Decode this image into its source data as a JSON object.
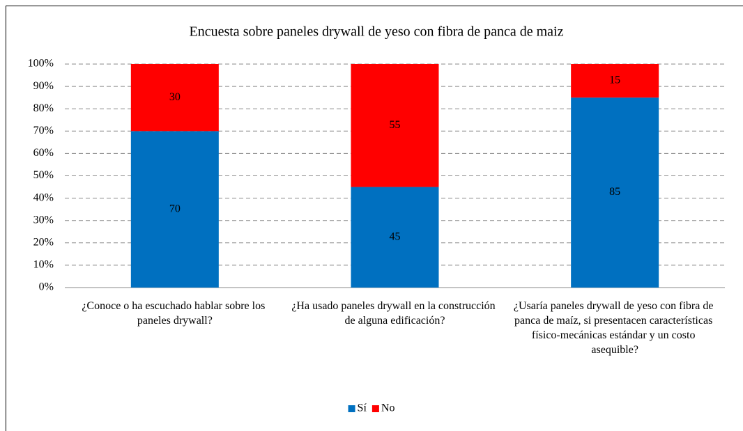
{
  "chart_data": {
    "type": "stacked_bar",
    "title": "Encuesta sobre paneles drywall de yeso con fibra de panca de maiz",
    "categories": [
      "¿Conoce o ha escuchado hablar sobre los paneles drywall?",
      "¿Ha usado paneles drywall en la construcción de alguna edificación?",
      "¿Usaría paneles drywall de yeso con fibra de panca de maíz, si presentacen  características físico-mecánicas estándar y un costo asequible?"
    ],
    "series": [
      {
        "name": "Sí",
        "color": "#0070c0",
        "values": [
          70,
          45,
          85
        ]
      },
      {
        "name": "No",
        "color": "#ff0000",
        "values": [
          30,
          55,
          15
        ]
      }
    ],
    "ylim": [
      0,
      100
    ],
    "yticks": [
      {
        "value": 0,
        "label": "0%"
      },
      {
        "value": 10,
        "label": "10%"
      },
      {
        "value": 20,
        "label": "20%"
      },
      {
        "value": 30,
        "label": "30%"
      },
      {
        "value": 40,
        "label": "40%"
      },
      {
        "value": 50,
        "label": "50%"
      },
      {
        "value": 60,
        "label": "60%"
      },
      {
        "value": 70,
        "label": "70%"
      },
      {
        "value": 80,
        "label": "80%"
      },
      {
        "value": 90,
        "label": "90%"
      },
      {
        "value": 100,
        "label": "100%"
      }
    ],
    "grid": true,
    "legend": "bottom"
  }
}
